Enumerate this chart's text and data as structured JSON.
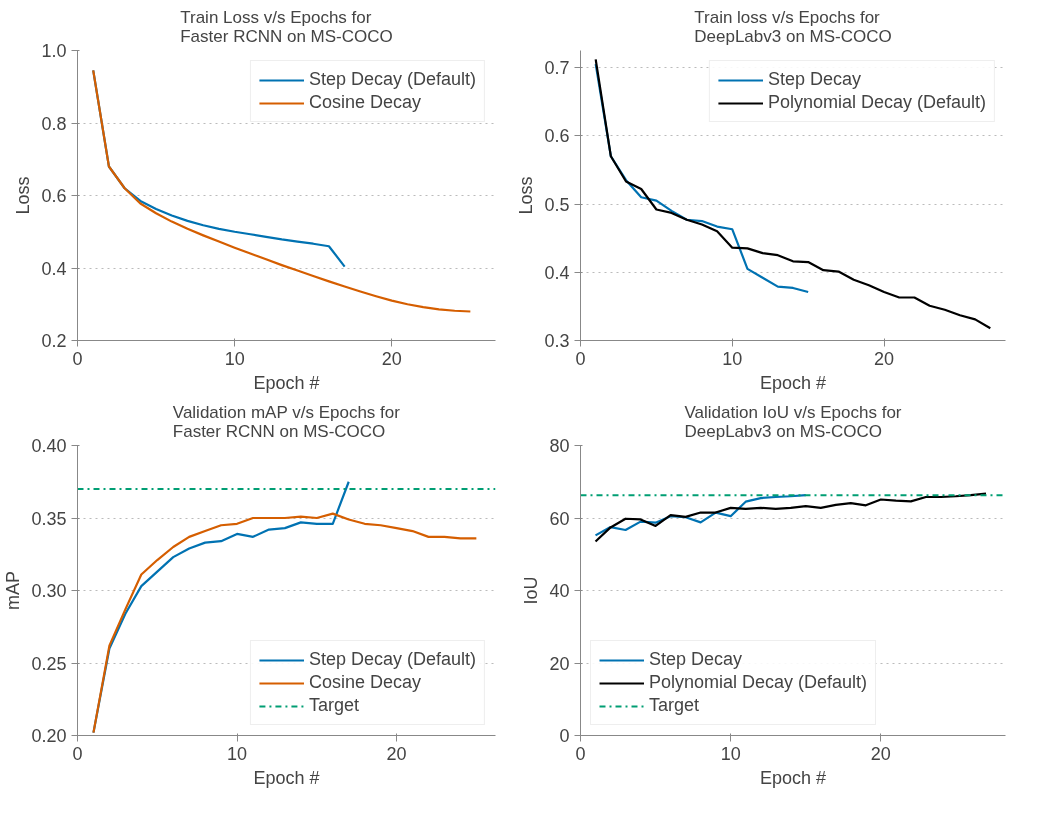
{
  "chart_data": [
    {
      "type": "line",
      "title": "Train Loss v/s Epochs for\nFaster RCNN on MS-COCO",
      "xlabel": "Epoch #",
      "ylabel": "Loss",
      "xlim": [
        0,
        26.6
      ],
      "ylim": [
        0.2,
        1.0
      ],
      "xticks": [
        0,
        10,
        20
      ],
      "yticks": [
        {
          "value": 0.2,
          "label": "0.2"
        },
        {
          "value": 0.4,
          "label": "0.4"
        },
        {
          "value": 0.6,
          "label": "0.6"
        },
        {
          "value": 0.8,
          "label": "0.8"
        },
        {
          "value": 1.0,
          "label": "1.0"
        }
      ],
      "grid": "y",
      "legend": "top right",
      "line_style": "solid",
      "marker": "none",
      "series": [
        {
          "name": "Step Decay (Default)",
          "color": "#0072b2",
          "x": [
            1,
            2,
            3,
            4,
            5,
            6,
            7,
            8,
            9,
            10,
            11,
            12,
            13,
            14,
            15,
            16,
            17
          ],
          "values": [
            0.945,
            0.68,
            0.62,
            0.585,
            0.563,
            0.545,
            0.53,
            0.518,
            0.508,
            0.5,
            0.493,
            0.486,
            0.479,
            0.473,
            0.467,
            0.46,
            0.404
          ]
        },
        {
          "name": "Cosine Decay",
          "color": "#d55e00",
          "x": [
            1,
            2,
            3,
            4,
            5,
            6,
            7,
            8,
            9,
            10,
            11,
            12,
            13,
            14,
            15,
            16,
            17,
            18,
            19,
            20,
            21,
            22,
            23,
            24,
            25
          ],
          "values": [
            0.945,
            0.68,
            0.62,
            0.578,
            0.551,
            0.528,
            0.508,
            0.49,
            0.473,
            0.456,
            0.44,
            0.424,
            0.408,
            0.393,
            0.378,
            0.363,
            0.349,
            0.335,
            0.322,
            0.31,
            0.3,
            0.292,
            0.286,
            0.282,
            0.28
          ]
        }
      ]
    },
    {
      "type": "line",
      "title": "Train loss v/s Epochs for\nDeepLabv3 on MS-COCO",
      "xlabel": "Epoch #",
      "ylabel": "Loss",
      "xlim": [
        0,
        28
      ],
      "ylim": [
        0.3,
        0.725
      ],
      "xticks": [
        0,
        10,
        20
      ],
      "yticks": [
        0.3,
        0.4,
        0.5,
        0.6,
        0.7
      ],
      "grid": "y",
      "legend": "top right",
      "line_style": "solid",
      "marker": "none",
      "series": [
        {
          "name": "Step Decay",
          "color": "#0072b2",
          "x": [
            1,
            2,
            3,
            4,
            5,
            6,
            7,
            8,
            9,
            10,
            11,
            12,
            13,
            14,
            15
          ],
          "values": [
            0.705,
            0.57,
            0.535,
            0.51,
            0.505,
            0.49,
            0.477,
            0.475,
            0.467,
            0.463,
            0.405,
            0.392,
            0.379,
            0.377,
            0.371
          ]
        },
        {
          "name": "Polynomial Decay (Default)",
          "color": "#000000",
          "x": [
            1,
            2,
            3,
            4,
            5,
            6,
            7,
            8,
            9,
            10,
            11,
            12,
            13,
            14,
            15,
            16,
            17,
            18,
            19,
            20,
            21,
            22,
            23,
            24,
            25,
            26,
            27
          ],
          "values": [
            0.712,
            0.57,
            0.533,
            0.522,
            0.492,
            0.487,
            0.477,
            0.47,
            0.46,
            0.436,
            0.435,
            0.428,
            0.425,
            0.416,
            0.415,
            0.403,
            0.401,
            0.389,
            0.381,
            0.371,
            0.363,
            0.363,
            0.351,
            0.345,
            0.337,
            0.331,
            0.318
          ]
        }
      ]
    },
    {
      "type": "line",
      "title": "Validation mAP v/s Epochs for\nFaster RCNN on MS-COCO",
      "xlabel": "Epoch #",
      "ylabel": "mAP",
      "xlim": [
        0,
        26.2
      ],
      "ylim": [
        0.2,
        0.4
      ],
      "xticks": [
        0,
        10,
        20
      ],
      "yticks": [
        {
          "value": 0.2,
          "label": "0.20"
        },
        {
          "value": 0.25,
          "label": "0.25"
        },
        {
          "value": 0.3,
          "label": "0.30"
        },
        {
          "value": 0.35,
          "label": "0.35"
        },
        {
          "value": 0.4,
          "label": "0.40"
        }
      ],
      "grid": "y",
      "legend": "bottom right",
      "line_style": "solid",
      "marker": "none",
      "ref_lines": [
        {
          "axis": "y",
          "value": 0.37,
          "label": "Target",
          "color": "#009e73",
          "line_style": "dashdot"
        }
      ],
      "series": [
        {
          "name": "Step Decay (Default)",
          "color": "#0072b2",
          "x": [
            1,
            2,
            3,
            4,
            5,
            6,
            7,
            8,
            9,
            10,
            11,
            12,
            13,
            14,
            15,
            16,
            17
          ],
          "values": [
            0.202,
            0.26,
            0.284,
            0.303,
            0.313,
            0.323,
            0.329,
            0.333,
            0.334,
            0.339,
            0.337,
            0.342,
            0.343,
            0.347,
            0.346,
            0.346,
            0.375
          ]
        },
        {
          "name": "Cosine Decay",
          "color": "#d55e00",
          "x": [
            1,
            2,
            3,
            4,
            5,
            6,
            7,
            8,
            9,
            10,
            11,
            12,
            13,
            14,
            15,
            16,
            17,
            18,
            19,
            20,
            21,
            22,
            23,
            24,
            25
          ],
          "values": [
            0.202,
            0.262,
            0.287,
            0.311,
            0.321,
            0.33,
            0.337,
            0.341,
            0.345,
            0.346,
            0.35,
            0.35,
            0.35,
            0.351,
            0.35,
            0.353,
            0.349,
            0.346,
            0.345,
            0.343,
            0.341,
            0.337,
            0.337,
            0.336,
            0.336
          ]
        }
      ]
    },
    {
      "type": "line",
      "title": "Validation IoU v/s Epochs for\nDeepLabv3 on MS-COCO",
      "xlabel": "Epoch #",
      "ylabel": "IoU",
      "xlim": [
        0,
        28.3
      ],
      "ylim": [
        0,
        80
      ],
      "xticks": [
        0,
        10,
        20
      ],
      "yticks": [
        0,
        20,
        40,
        60,
        80
      ],
      "grid": "y",
      "legend": "bottom left",
      "line_style": "solid",
      "marker": "none",
      "ref_lines": [
        {
          "axis": "y",
          "value": 66.3,
          "label": "Target",
          "color": "#009e73",
          "line_style": "dashdot"
        }
      ],
      "series": [
        {
          "name": "Step Decay",
          "color": "#0072b2",
          "x": [
            1,
            2,
            3,
            4,
            5,
            6,
            7,
            8,
            9,
            10,
            11,
            12,
            13,
            14,
            15
          ],
          "values": [
            55.2,
            57.5,
            56.7,
            59,
            58.7,
            60.5,
            60.2,
            58.8,
            61.5,
            60.5,
            64.5,
            65.5,
            65.8,
            66,
            66.3
          ]
        },
        {
          "name": "Polynomial Decay (Default)",
          "color": "#000000",
          "x": [
            1,
            2,
            3,
            4,
            5,
            6,
            7,
            8,
            9,
            10,
            11,
            12,
            13,
            14,
            15,
            16,
            17,
            18,
            19,
            20,
            21,
            22,
            23,
            24,
            25,
            26,
            27
          ],
          "values": [
            53.5,
            57.4,
            59.8,
            59.6,
            57.8,
            60.8,
            60.3,
            61.5,
            61.5,
            62.8,
            62.5,
            62.8,
            62.5,
            62.8,
            63.3,
            62.8,
            63.6,
            64.1,
            63.5,
            65.1,
            64.8,
            64.6,
            65.8,
            65.8,
            66,
            66.3,
            66.7
          ]
        }
      ]
    }
  ]
}
